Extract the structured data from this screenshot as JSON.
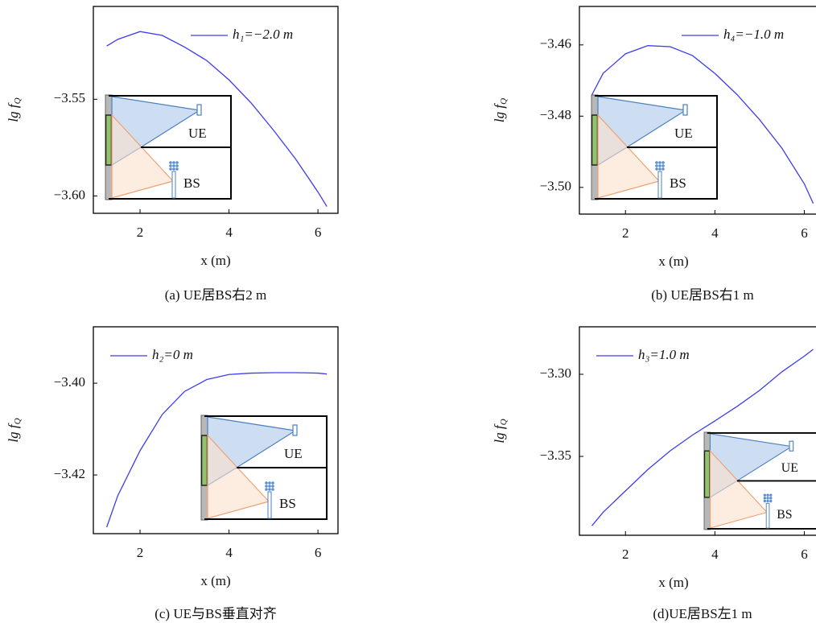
{
  "chart_data": [
    {
      "type": "line",
      "caption": "(a) UE居BS右2 m",
      "xlabel": "x (m)",
      "ylabel": "lg f",
      "ylabel_subscript": "Q",
      "x": [
        1.25,
        1.5,
        2,
        2.5,
        3,
        3.5,
        4,
        4.5,
        5,
        5.5,
        6,
        6.2
      ],
      "series": [
        {
          "name": "h₁=−2.0 m",
          "color": "#3c3cf0",
          "values": [
            -3.5225,
            -3.519,
            -3.515,
            -3.517,
            -3.523,
            -3.53,
            -3.54,
            -3.552,
            -3.566,
            -3.581,
            -3.598,
            -3.6055
          ]
        }
      ],
      "xlim": [
        0.95,
        6.45
      ],
      "ylim": [
        -3.609,
        -3.502
      ],
      "xticks": [
        2,
        4,
        6
      ],
      "yticks": [
        {
          "value": -3.55,
          "label": "−3.55"
        },
        {
          "value": -3.6,
          "label": "−3.60"
        }
      ],
      "legend": "upper right",
      "inset_labels": [
        "UE",
        "BS"
      ]
    },
    {
      "type": "line",
      "caption": "(b) UE居BS右1 m",
      "xlabel": "x (m)",
      "ylabel": "lg f",
      "ylabel_subscript": "Q",
      "x": [
        1.25,
        1.5,
        2,
        2.5,
        3,
        3.5,
        4,
        4.5,
        5,
        5.5,
        6,
        6.2
      ],
      "series": [
        {
          "name": "h₄=−1.0 m",
          "color": "#3c3cf0",
          "values": [
            -3.474,
            -3.468,
            -3.4625,
            -3.4602,
            -3.4605,
            -3.463,
            -3.468,
            -3.474,
            -3.481,
            -3.489,
            -3.499,
            -3.5045
          ]
        }
      ],
      "xlim": [
        0.97,
        6.55
      ],
      "ylim": [
        -3.5075,
        -3.4492
      ],
      "xticks": [
        2,
        4,
        6
      ],
      "yticks": [
        {
          "value": -3.46,
          "label": "−3.46"
        },
        {
          "value": -3.48,
          "label": "−3.48"
        },
        {
          "value": -3.5,
          "label": "−3.50"
        }
      ],
      "legend": "upper right",
      "inset_labels": [
        "UE",
        "BS"
      ]
    },
    {
      "type": "line",
      "caption": "(c) UE与BS垂直对齐",
      "xlabel": "x (m)",
      "ylabel": "lg f",
      "ylabel_subscript": "Q",
      "x": [
        1.25,
        1.5,
        2,
        2.5,
        3,
        3.5,
        4,
        4.5,
        5,
        5.5,
        6,
        6.2
      ],
      "series": [
        {
          "name": "h₂=0 m",
          "color": "#3c3cf0",
          "values": [
            -3.4314,
            -3.4245,
            -3.4147,
            -3.4068,
            -3.4018,
            -3.3992,
            -3.3981,
            -3.3978,
            -3.3977,
            -3.3977,
            -3.3978,
            -3.398
          ]
        }
      ],
      "xlim": [
        0.95,
        6.45
      ],
      "ylim": [
        -3.4328,
        -3.3877
      ],
      "xticks": [
        2,
        4,
        6
      ],
      "yticks": [
        {
          "value": -3.4,
          "label": "−3.40"
        },
        {
          "value": -3.42,
          "label": "−3.42"
        }
      ],
      "legend": "upper left",
      "inset_labels": [
        "UE",
        "BS"
      ]
    },
    {
      "type": "line",
      "caption": "(d)UE居BS左1 m",
      "xlabel": "x (m)",
      "ylabel": "lg f",
      "ylabel_subscript": "Q",
      "x": [
        1.25,
        1.5,
        2,
        2.5,
        3,
        3.5,
        4,
        4.5,
        5,
        5.5,
        6,
        6.2
      ],
      "series": [
        {
          "name": "h₃=1.0 m",
          "color": "#3c3cf0",
          "values": [
            -3.3922,
            -3.384,
            -3.371,
            -3.358,
            -3.3466,
            -3.337,
            -3.3284,
            -3.3195,
            -3.3098,
            -3.2985,
            -3.289,
            -3.2848
          ]
        }
      ],
      "xlim": [
        0.97,
        6.55
      ],
      "ylim": [
        -3.398,
        -3.2711
      ],
      "xticks": [
        2,
        4,
        6
      ],
      "yticks": [
        {
          "value": -3.3,
          "label": "−3.30"
        },
        {
          "value": -3.35,
          "label": "−3.35"
        }
      ],
      "legend": "upper left",
      "inset_labels": [
        "UE",
        "BS"
      ]
    }
  ]
}
